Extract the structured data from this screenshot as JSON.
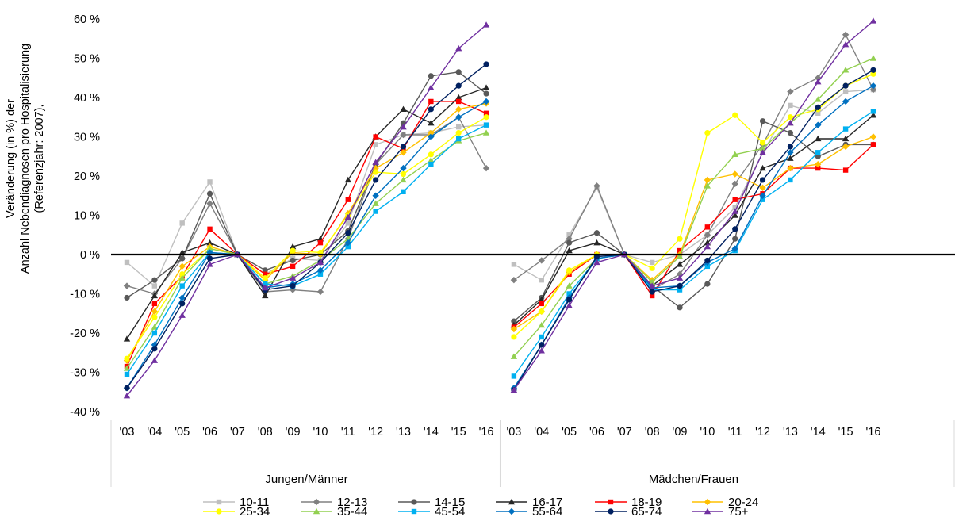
{
  "chart_data": {
    "type": "line",
    "ylabel_lines": [
      "Veränderung (in %) der",
      "Anzahl Nebendiagnosen pro Hospitalisierung",
      "(Referenzjahr: 2007),"
    ],
    "ylim": [
      -40,
      60
    ],
    "y_ticks": [
      -40,
      -30,
      -20,
      -10,
      0,
      10,
      20,
      30,
      40,
      50,
      60
    ],
    "y_tick_labels": [
      "-40 %",
      "-30 %",
      "-20 %",
      "-10 %",
      "0 %",
      "10 %",
      "20 %",
      "30 %",
      "40 %",
      "50 %",
      "60 %"
    ],
    "grid": false,
    "legend_position": "bottom",
    "categories": [
      "'03",
      "'04",
      "'05",
      "'06",
      "'07",
      "'08",
      "'09",
      "'10",
      "'11",
      "'12",
      "'13",
      "'14",
      "'15",
      "'16"
    ],
    "groups": [
      "Jungen/Männer",
      "Mädchen/Frauen"
    ],
    "series": [
      {
        "name": "10-11",
        "color": "#bfbfbf",
        "marker": "square",
        "male": [
          -2,
          -8,
          8,
          18.5,
          0,
          -5,
          -1,
          -1.5,
          8,
          28,
          30.5,
          31,
          32.5,
          33
        ],
        "female": [
          -2.5,
          -6.5,
          5,
          17,
          0,
          -2,
          0,
          5,
          12,
          26,
          38,
          36,
          41.5,
          42
        ]
      },
      {
        "name": "12-13",
        "color": "#808080",
        "marker": "diamond",
        "male": [
          -8,
          -10,
          -1,
          13,
          0,
          -9.5,
          -9,
          -9.5,
          4,
          23,
          30.5,
          30.5,
          35,
          22
        ],
        "female": [
          -6.5,
          -1.5,
          4,
          17.5,
          0,
          -9,
          -5,
          5,
          18,
          28,
          41.5,
          45,
          56,
          42
        ]
      },
      {
        "name": "14-15",
        "color": "#595959",
        "marker": "circle",
        "male": [
          -11,
          -6.5,
          -1,
          15.5,
          0,
          -4,
          -1.5,
          0,
          6,
          23,
          33.5,
          45.5,
          46.5,
          41
        ],
        "female": [
          -17,
          -11,
          3,
          5.5,
          0,
          -8,
          -13.5,
          -7.5,
          4,
          34,
          31,
          25,
          28,
          28
        ]
      },
      {
        "name": "16-17",
        "color": "#262626",
        "marker": "triangle",
        "male": [
          -21.5,
          -10.5,
          0.5,
          3,
          0,
          -10.5,
          2,
          4,
          19,
          30,
          37,
          33.5,
          40,
          42.5
        ],
        "female": [
          -18,
          -11.5,
          1,
          3,
          0,
          -8,
          -2.5,
          3,
          10,
          22,
          24.5,
          29.5,
          29.5,
          35.5
        ]
      },
      {
        "name": "18-19",
        "color": "#ff0000",
        "marker": "square",
        "male": [
          -28.5,
          -12.5,
          -5.5,
          6.5,
          0,
          -5,
          -3,
          3,
          14,
          30,
          27,
          39,
          39,
          36
        ],
        "female": [
          -18.5,
          -12.5,
          -5,
          0,
          0,
          -10.5,
          1,
          7,
          14,
          15.5,
          22,
          22,
          21.5,
          28
        ]
      },
      {
        "name": "20-24",
        "color": "#ffc000",
        "marker": "diamond",
        "male": [
          -27,
          -14.5,
          -3,
          2,
          0,
          -6.5,
          0.5,
          0,
          10.5,
          22,
          26,
          31,
          37,
          38.5
        ],
        "female": [
          -19,
          -14.5,
          -4.5,
          0,
          0,
          -6.5,
          0,
          19,
          20.5,
          17,
          22,
          23,
          27.5,
          30
        ]
      },
      {
        "name": "25-34",
        "color": "#ffff00",
        "marker": "circle",
        "male": [
          -26.5,
          -16,
          -5,
          1.5,
          0,
          -6,
          1,
          0.5,
          10,
          21,
          20.5,
          25.5,
          31,
          35
        ],
        "female": [
          -21,
          -14.5,
          -4,
          0,
          0,
          -3.5,
          4,
          31,
          35.5,
          28.5,
          35,
          37,
          43,
          46
        ]
      },
      {
        "name": "35-44",
        "color": "#92d050",
        "marker": "triangle",
        "male": [
          -29,
          -18.5,
          -6,
          1.5,
          0,
          -7.5,
          -5.5,
          -1.5,
          4,
          13,
          19,
          24,
          29,
          31
        ],
        "female": [
          -26,
          -18,
          -8,
          -1,
          0,
          -7,
          -0.5,
          17.5,
          25.5,
          27,
          33.5,
          39.5,
          47,
          50
        ]
      },
      {
        "name": "45-54",
        "color": "#00b0f0",
        "marker": "square",
        "male": [
          -30.5,
          -20,
          -8,
          0.5,
          0,
          -7.5,
          -8,
          -5,
          2,
          11,
          16,
          23,
          29.5,
          33
        ],
        "female": [
          -31,
          -21,
          -10,
          -1,
          0,
          -9,
          -9,
          -3,
          1,
          14,
          19,
          26,
          32,
          36.5
        ]
      },
      {
        "name": "55-64",
        "color": "#0070c0",
        "marker": "diamond",
        "male": [
          -34,
          -23,
          -11,
          0.5,
          0,
          -8.5,
          -7.5,
          -4,
          3,
          15,
          22,
          30,
          35,
          39
        ],
        "female": [
          -34,
          -23,
          -11,
          -1,
          0,
          -8.5,
          -8,
          -2,
          1.5,
          15,
          26,
          33,
          39,
          43
        ]
      },
      {
        "name": "65-74",
        "color": "#002060",
        "marker": "circle",
        "male": [
          -34,
          -24,
          -12.5,
          -1,
          0,
          -9,
          -8,
          -2,
          5.5,
          19,
          27.5,
          37,
          43,
          48.5
        ],
        "female": [
          -34.5,
          -23,
          -11.5,
          -0.5,
          0,
          -9.5,
          -8,
          -1.5,
          6.5,
          19,
          27.5,
          37.5,
          43,
          47
        ]
      },
      {
        "name": "75+",
        "color": "#7030a0",
        "marker": "triangle",
        "male": [
          -36,
          -27,
          -15.5,
          -2.5,
          0,
          -8.5,
          -6,
          -2,
          9.5,
          23.5,
          32.5,
          42.5,
          52.5,
          58.5
        ],
        "female": [
          -34.5,
          -24.5,
          -13,
          -2,
          0,
          -8,
          -6,
          2,
          11,
          26,
          33.5,
          44,
          53.5,
          59.5
        ]
      }
    ]
  }
}
